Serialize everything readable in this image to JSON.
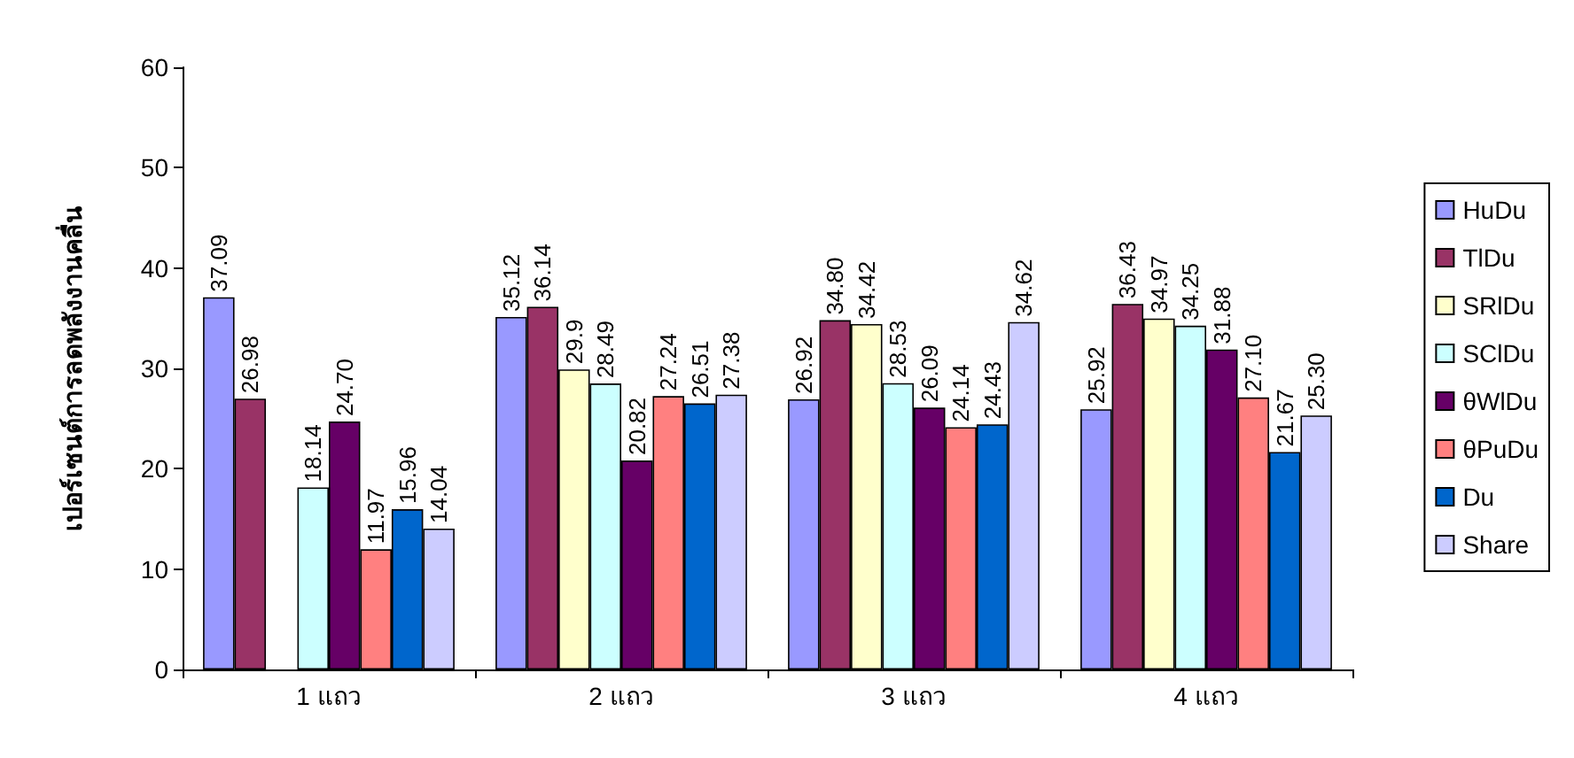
{
  "chart_data": {
    "type": "bar",
    "ylabel": "เปอร์เซนต์การลดพลังงานคลื่น",
    "categories": [
      "1 แถว",
      "2 แถว",
      "3 แถว",
      "4 แถว"
    ],
    "series": [
      {
        "name": "HuDu",
        "color": "#9999ff",
        "values": [
          37.09,
          35.12,
          26.92,
          25.92
        ]
      },
      {
        "name": "TlDu",
        "color": "#993366",
        "values": [
          26.98,
          36.14,
          34.8,
          36.43
        ]
      },
      {
        "name": "SRlDu",
        "color": "#ffffcc",
        "values": [
          null,
          29.9,
          34.42,
          34.97
        ]
      },
      {
        "name": "SClDu",
        "color": "#ccffff",
        "values": [
          18.14,
          28.49,
          28.53,
          34.25
        ]
      },
      {
        "name": "θWlDu",
        "color": "#660066",
        "values": [
          24.7,
          20.82,
          26.09,
          31.88
        ]
      },
      {
        "name": "θPuDu",
        "color": "#ff8080",
        "values": [
          11.97,
          27.24,
          24.14,
          27.1
        ]
      },
      {
        "name": "Du",
        "color": "#0066cc",
        "values": [
          15.96,
          26.51,
          24.43,
          21.67
        ]
      },
      {
        "name": "Share",
        "color": "#ccccff",
        "values": [
          14.04,
          27.38,
          34.62,
          25.3
        ]
      }
    ],
    "value_labels": [
      [
        "37.09",
        "35.12",
        "26.92",
        "25.92"
      ],
      [
        "26.98",
        "36.14",
        "34.80",
        "36.43"
      ],
      [
        null,
        "29.9",
        "34.42",
        "34.97"
      ],
      [
        "18.14",
        "28.49",
        "28.53",
        "34.25"
      ],
      [
        "24.70",
        "20.82",
        "26.09",
        "31.88"
      ],
      [
        "11.97",
        "27.24",
        "24.14",
        "27.10"
      ],
      [
        "15.96",
        "26.51",
        "24.43",
        "21.67"
      ],
      [
        "14.04",
        "27.38",
        "34.62",
        "25.30"
      ]
    ],
    "ylim": [
      0,
      60
    ],
    "yticks": [
      0,
      10,
      20,
      30,
      40,
      50,
      60
    ],
    "grid": false,
    "legend": "right"
  }
}
